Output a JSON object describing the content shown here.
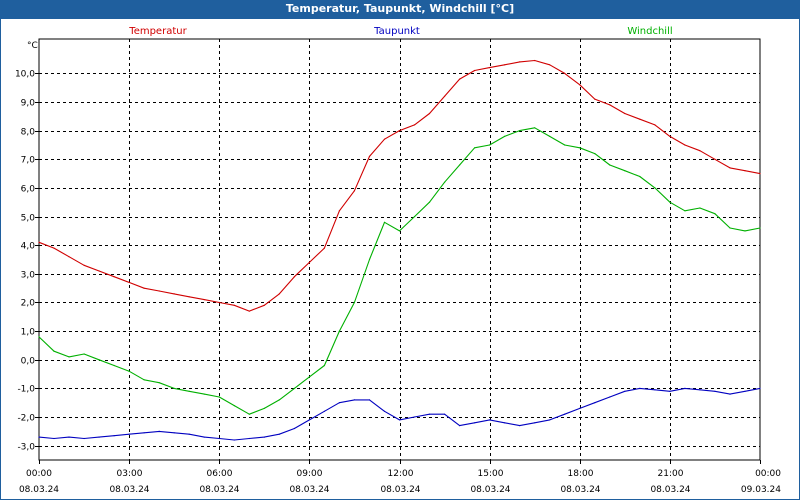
{
  "window": {
    "title": "Temperatur, Taupunkt, Windchill [°C]"
  },
  "chart_data": {
    "type": "line",
    "title": "Temperatur, Taupunkt, Windchill [°C]",
    "ylabel": "°C",
    "xlabel": "",
    "x_unit": "hours since 08.03.24 00:00",
    "xlim": [
      0,
      24
    ],
    "ylim": [
      -3.5,
      11.2
    ],
    "grid": true,
    "legend_position": "top",
    "y_ticks": [
      {
        "value": 10,
        "label": "10,0"
      },
      {
        "value": 9,
        "label": "9,0"
      },
      {
        "value": 8,
        "label": "8,0"
      },
      {
        "value": 7,
        "label": "7,0"
      },
      {
        "value": 6,
        "label": "6,0"
      },
      {
        "value": 5,
        "label": "5,0"
      },
      {
        "value": 4,
        "label": "4,0"
      },
      {
        "value": 3,
        "label": "3,0"
      },
      {
        "value": 2,
        "label": "2,0"
      },
      {
        "value": 1,
        "label": "1,0"
      },
      {
        "value": 0,
        "label": "0,0"
      },
      {
        "value": -1,
        "label": "-1,0"
      },
      {
        "value": -2,
        "label": "-2,0"
      },
      {
        "value": -3,
        "label": "-3,0"
      }
    ],
    "x_ticks": [
      {
        "value": 0,
        "time": "00:00",
        "date": "08.03.24"
      },
      {
        "value": 3,
        "time": "03:00",
        "date": "08.03.24"
      },
      {
        "value": 6,
        "time": "06:00",
        "date": "08.03.24"
      },
      {
        "value": 9,
        "time": "09:00",
        "date": "08.03.24"
      },
      {
        "value": 12,
        "time": "12:00",
        "date": "08.03.24"
      },
      {
        "value": 15,
        "time": "15:00",
        "date": "08.03.24"
      },
      {
        "value": 18,
        "time": "18:00",
        "date": "08.03.24"
      },
      {
        "value": 21,
        "time": "21:00",
        "date": "08.03.24"
      },
      {
        "value": 24,
        "time": "00:00",
        "date": "09.03.24"
      }
    ],
    "series": [
      {
        "name": "Temperatur",
        "color": "#d00000",
        "x": [
          0,
          0.5,
          1,
          1.5,
          2,
          2.5,
          3,
          3.5,
          4,
          4.5,
          5,
          5.5,
          6,
          6.5,
          7,
          7.5,
          8,
          8.5,
          9,
          9.5,
          10,
          10.5,
          11,
          11.5,
          12,
          12.5,
          13,
          13.5,
          14,
          14.5,
          15,
          15.5,
          16,
          16.5,
          17,
          17.5,
          18,
          18.5,
          19,
          19.5,
          20,
          20.5,
          21,
          21.5,
          22,
          22.5,
          23,
          23.5,
          24
        ],
        "values": [
          4.1,
          3.9,
          3.6,
          3.3,
          3.1,
          2.9,
          2.7,
          2.5,
          2.4,
          2.3,
          2.2,
          2.1,
          2.0,
          1.9,
          1.7,
          1.9,
          2.3,
          2.9,
          3.4,
          3.9,
          5.2,
          5.9,
          7.1,
          7.7,
          8.0,
          8.2,
          8.6,
          9.2,
          9.8,
          10.1,
          10.2,
          10.3,
          10.4,
          10.45,
          10.3,
          10.0,
          9.6,
          9.1,
          8.9,
          8.6,
          8.4,
          8.2,
          7.8,
          7.5,
          7.3,
          7.0,
          6.7,
          6.6,
          6.5
        ]
      },
      {
        "name": "Taupunkt",
        "color": "#0000c0",
        "x": [
          0,
          0.5,
          1,
          1.5,
          2,
          2.5,
          3,
          3.5,
          4,
          4.5,
          5,
          5.5,
          6,
          6.5,
          7,
          7.5,
          8,
          8.5,
          9,
          9.5,
          10,
          10.5,
          11,
          11.5,
          12,
          12.5,
          13,
          13.5,
          14,
          14.5,
          15,
          15.5,
          16,
          16.5,
          17,
          17.5,
          18,
          18.5,
          19,
          19.5,
          20,
          20.5,
          21,
          21.5,
          22,
          22.5,
          23,
          23.5,
          24
        ],
        "values": [
          -2.7,
          -2.75,
          -2.7,
          -2.75,
          -2.7,
          -2.65,
          -2.6,
          -2.55,
          -2.5,
          -2.55,
          -2.6,
          -2.7,
          -2.75,
          -2.8,
          -2.75,
          -2.7,
          -2.6,
          -2.4,
          -2.1,
          -1.8,
          -1.5,
          -1.4,
          -1.4,
          -1.8,
          -2.1,
          -2.0,
          -1.9,
          -1.9,
          -2.3,
          -2.2,
          -2.1,
          -2.2,
          -2.3,
          -2.2,
          -2.1,
          -1.9,
          -1.7,
          -1.5,
          -1.3,
          -1.1,
          -1.0,
          -1.05,
          -1.1,
          -1.0,
          -1.05,
          -1.1,
          -1.2,
          -1.1,
          -1.0
        ]
      },
      {
        "name": "Windchill",
        "color": "#00b000",
        "x": [
          0,
          0.5,
          1,
          1.5,
          2,
          2.5,
          3,
          3.5,
          4,
          4.5,
          5,
          5.5,
          6,
          6.5,
          7,
          7.5,
          8,
          8.5,
          9,
          9.5,
          10,
          10.5,
          11,
          11.5,
          12,
          12.5,
          13,
          13.5,
          14,
          14.5,
          15,
          15.5,
          16,
          16.5,
          17,
          17.5,
          18,
          18.5,
          19,
          19.5,
          20,
          20.5,
          21,
          21.5,
          22,
          22.5,
          23,
          23.5,
          24
        ],
        "values": [
          0.8,
          0.3,
          0.1,
          0.2,
          0.0,
          -0.2,
          -0.4,
          -0.7,
          -0.8,
          -1.0,
          -1.1,
          -1.2,
          -1.3,
          -1.6,
          -1.9,
          -1.7,
          -1.4,
          -1.0,
          -0.6,
          -0.2,
          1.0,
          2.0,
          3.5,
          4.8,
          4.5,
          5.0,
          5.5,
          6.2,
          6.8,
          7.4,
          7.5,
          7.8,
          8.0,
          8.1,
          7.8,
          7.5,
          7.4,
          7.2,
          6.8,
          6.6,
          6.4,
          6.0,
          5.5,
          5.2,
          5.3,
          5.1,
          4.6,
          4.5,
          4.6
        ]
      }
    ]
  }
}
